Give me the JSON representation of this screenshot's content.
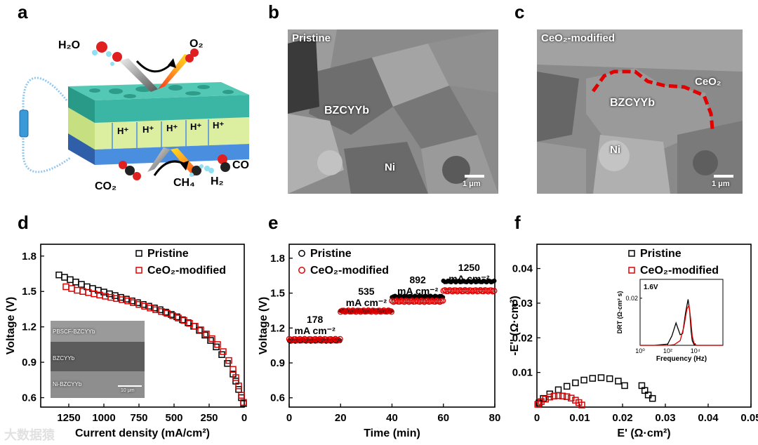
{
  "figure": {
    "a": {
      "label": "a",
      "molecules": {
        "h2o": "H₂O",
        "o2": "O₂",
        "co2": "CO₂",
        "ch4": "CH₄",
        "h2": "H₂",
        "co": "CO"
      },
      "proton": "H⁺",
      "colors": {
        "top_layer": "#3cb6a4",
        "electrolyte": "#dcefa0",
        "bottom_layer": "#3e7fcf"
      }
    },
    "b": {
      "label": "b",
      "title": "Pristine",
      "phase1": "BZCYYb",
      "phase2": "Ni",
      "scale": "1 μm"
    },
    "c": {
      "label": "c",
      "title": "CeO₂-modified",
      "phase1": "BZCYYb",
      "phase2": "Ni",
      "phase3": "CeO₂",
      "scale": "1 μm",
      "highlight_color": "#e00000"
    },
    "d": {
      "label": "d",
      "inset_labels": [
        "PBSCF-BZCYYb",
        "BZCYYb",
        "Ni-BZCYYb"
      ],
      "inset_scale": "10 μm"
    },
    "e": {
      "label": "e",
      "steps": [
        {
          "value": "178",
          "unit": "mA cm⁻²"
        },
        {
          "value": "535",
          "unit": "mA cm⁻²"
        },
        {
          "value": "892",
          "unit": "mA cm⁻²"
        },
        {
          "value": "1250",
          "unit": "mA cm⁻²"
        }
      ]
    },
    "f": {
      "label": "f",
      "inset_title": "1.6V"
    }
  },
  "watermark": "大数据猿",
  "chart_data": [
    {
      "type": "scatter",
      "panel": "d",
      "xlabel": "Current density (mA/cm²)",
      "ylabel": "Voltage (V)",
      "xlim": [
        1450,
        0
      ],
      "ylim": [
        0.52,
        1.9
      ],
      "xticks": [
        1250,
        1000,
        750,
        500,
        250,
        0
      ],
      "yticks": [
        0.6,
        0.9,
        1.2,
        1.5,
        1.8
      ],
      "legend": "top-right",
      "series": [
        {
          "name": "Pristine",
          "color": "#000000",
          "x": [
            1320,
            1280,
            1240,
            1200,
            1160,
            1120,
            1080,
            1040,
            1000,
            960,
            920,
            880,
            840,
            800,
            760,
            720,
            680,
            640,
            600,
            560,
            520,
            480,
            440,
            400,
            360,
            320,
            280,
            240,
            200,
            160,
            120,
            80,
            60,
            40,
            20,
            5
          ],
          "y": [
            1.64,
            1.62,
            1.6,
            1.58,
            1.56,
            1.54,
            1.525,
            1.51,
            1.495,
            1.48,
            1.465,
            1.45,
            1.435,
            1.42,
            1.405,
            1.39,
            1.375,
            1.36,
            1.345,
            1.325,
            1.305,
            1.285,
            1.26,
            1.235,
            1.205,
            1.17,
            1.13,
            1.085,
            1.03,
            0.965,
            0.89,
            0.8,
            0.74,
            0.67,
            0.6,
            0.55
          ]
        },
        {
          "name": "CeO₂-modified",
          "color": "#e00000",
          "x": [
            1270,
            1230,
            1190,
            1150,
            1110,
            1070,
            1030,
            990,
            950,
            910,
            870,
            830,
            790,
            750,
            710,
            670,
            630,
            590,
            550,
            510,
            470,
            430,
            390,
            350,
            310,
            270,
            230,
            190,
            150,
            110,
            80,
            60,
            40,
            20,
            5
          ],
          "y": [
            1.54,
            1.525,
            1.51,
            1.5,
            1.49,
            1.48,
            1.47,
            1.46,
            1.45,
            1.44,
            1.43,
            1.42,
            1.405,
            1.39,
            1.375,
            1.36,
            1.345,
            1.33,
            1.315,
            1.295,
            1.275,
            1.255,
            1.23,
            1.205,
            1.175,
            1.14,
            1.1,
            1.05,
            0.99,
            0.915,
            0.84,
            0.77,
            0.7,
            0.62,
            0.56
          ]
        }
      ]
    },
    {
      "type": "scatter",
      "panel": "e",
      "xlabel": "Time (min)",
      "ylabel": "Voltage (V)",
      "xlim": [
        0,
        80
      ],
      "ylim": [
        0.52,
        1.92
      ],
      "xticks": [
        0,
        20,
        40,
        60,
        80
      ],
      "yticks": [
        0.6,
        0.9,
        1.2,
        1.5,
        1.8
      ],
      "legend": "top-left",
      "series": [
        {
          "name": "Pristine",
          "color": "#000000",
          "segments": [
            {
              "t": [
                0,
                20
              ],
              "v": 1.09
            },
            {
              "t": [
                20,
                40
              ],
              "v": 1.345
            },
            {
              "t": [
                40,
                60
              ],
              "v": 1.47
            },
            {
              "t": [
                60,
                80
              ],
              "v": 1.6
            }
          ]
        },
        {
          "name": "CeO₂-modified",
          "color": "#e00000",
          "segments": [
            {
              "t": [
                0,
                20
              ],
              "v": 1.1
            },
            {
              "t": [
                20,
                40
              ],
              "v": 1.345
            },
            {
              "t": [
                40,
                60
              ],
              "v": 1.43
            },
            {
              "t": [
                60,
                80
              ],
              "v": 1.52
            }
          ]
        }
      ]
    },
    {
      "type": "scatter",
      "panel": "f",
      "xlabel": "E' (Ω·cm²)",
      "ylabel": "-E'' (Ω·cm²)",
      "xlim": [
        0,
        0.05
      ],
      "ylim": [
        0,
        0.047
      ],
      "xticks": [
        0,
        0.01,
        0.02,
        0.03,
        0.04,
        0.05
      ],
      "yticks": [
        0.01,
        0.02,
        0.03,
        0.04
      ],
      "legend": "top-right",
      "series": [
        {
          "name": "Pristine",
          "color": "#000000",
          "x": [
            0.0005,
            0.0015,
            0.003,
            0.005,
            0.007,
            0.009,
            0.011,
            0.013,
            0.015,
            0.017,
            0.019,
            0.0205,
            0.0245,
            0.0252,
            0.026,
            0.027
          ],
          "y": [
            0.0012,
            0.0025,
            0.0038,
            0.005,
            0.006,
            0.007,
            0.0078,
            0.0083,
            0.0085,
            0.0082,
            0.0075,
            0.0062,
            0.0062,
            0.0048,
            0.0035,
            0.0025
          ]
        },
        {
          "name": "CeO₂-modified",
          "color": "#e00000",
          "x": [
            0.0002,
            0.001,
            0.002,
            0.003,
            0.004,
            0.005,
            0.006,
            0.007,
            0.008,
            0.009,
            0.0098,
            0.0105
          ],
          "y": [
            0.0008,
            0.0016,
            0.0023,
            0.0029,
            0.0032,
            0.0033,
            0.0032,
            0.003,
            0.0026,
            0.002,
            0.0013,
            0.0006
          ]
        }
      ]
    },
    {
      "type": "line",
      "panel": "f-inset",
      "xlabel": "Frequency (Hz)",
      "ylabel": "DRT (Ω·cm² s)",
      "xscale": "log",
      "xlim": [
        1,
        1000000
      ],
      "ylim": [
        0,
        0.028
      ],
      "xticks": [
        "10⁰",
        "10²",
        "10⁴"
      ],
      "yticks": [
        0.02
      ],
      "series": [
        {
          "name": "",
          "color": "#000000",
          "x": [
            1,
            10,
            100,
            200,
            400,
            800,
            1200,
            2000,
            3000,
            4000,
            5000,
            6000,
            8000,
            12000,
            20000,
            100000,
            1000000
          ],
          "y": [
            0,
            0,
            0.0005,
            0.004,
            0.0095,
            0.0045,
            0.005,
            0.014,
            0.0195,
            0.014,
            0.006,
            0.002,
            0.0004,
            0,
            0,
            0,
            0
          ]
        },
        {
          "name": "",
          "color": "#e00000",
          "x": [
            1,
            10,
            100,
            300,
            800,
            1500,
            2500,
            3500,
            4500,
            6000,
            8000,
            12000,
            100000,
            1000000
          ],
          "y": [
            0,
            0,
            0,
            0.0003,
            0.002,
            0.008,
            0.0155,
            0.017,
            0.012,
            0.004,
            0.001,
            0,
            0,
            0
          ]
        }
      ]
    }
  ]
}
